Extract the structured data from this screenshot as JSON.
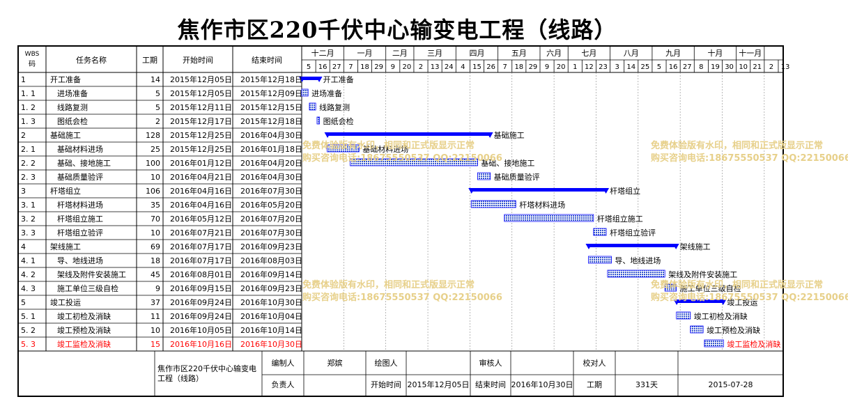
{
  "title": "焦作市区220千伏中心输变电工程（线路）",
  "headers": {
    "wbs": "WBS码",
    "name": "任务名称",
    "dur": "工期",
    "start": "开始时间",
    "end": "结束时间"
  },
  "colors": {
    "bar": "#0000ff",
    "fill": "#3355cc",
    "highlight": "#ff0000",
    "watermark": "#e7d08a"
  },
  "watermark": {
    "line1": "免费体验版有水印，相同和正式版显示正常",
    "line2": "购买咨询电话:18675550537 QQ:22150066"
  },
  "footer": {
    "project": "焦作市区220千伏中心输变电工程（线路）",
    "compiler_label": "编制人",
    "compiler": "郑嫔",
    "drawer_label": "绘图人",
    "reviewer_label": "审核人",
    "checker_label": "校对人",
    "owner_label": "负责人",
    "start_label": "开始时间",
    "start": "2015年12月05日",
    "end_label": "结束时间",
    "end": "2016年10月30日",
    "dur_label": "工期",
    "dur": "331天",
    "date": "2015-07-28"
  },
  "chart_data": {
    "type": "gantt",
    "timeline": {
      "months": [
        {
          "label": "十二月",
          "ticks": [
            "5",
            "16",
            "27"
          ]
        },
        {
          "label": "一月",
          "ticks": [
            "7",
            "18",
            "29"
          ]
        },
        {
          "label": "二月",
          "ticks": [
            "9",
            "20"
          ]
        },
        {
          "label": "三月",
          "ticks": [
            "2",
            "13",
            "24"
          ]
        },
        {
          "label": "四月",
          "ticks": [
            "4",
            "15",
            "26"
          ]
        },
        {
          "label": "五月",
          "ticks": [
            "7",
            "18",
            "29"
          ]
        },
        {
          "label": "六月",
          "ticks": [
            "9",
            "20"
          ]
        },
        {
          "label": "七月",
          "ticks": [
            "1",
            "12",
            "23"
          ]
        },
        {
          "label": "八月",
          "ticks": [
            "3",
            "14",
            "25"
          ]
        },
        {
          "label": "九月",
          "ticks": [
            "5",
            "16",
            "27"
          ]
        },
        {
          "label": "十月",
          "ticks": [
            "8",
            "19",
            "30"
          ]
        },
        {
          "label": "十一月",
          "ticks": [
            "10",
            "21"
          ]
        },
        {
          "label": "",
          "ticks": [
            "2",
            "13"
          ]
        }
      ]
    },
    "tasks": [
      {
        "wbs": "1",
        "name": "开工准备",
        "dur": 14,
        "start": "2015年12月05日",
        "end": "2015年12月18日",
        "summary": true,
        "level": 0
      },
      {
        "wbs": "1.1",
        "name": "进场准备",
        "dur": 5,
        "start": "2015年12月05日",
        "end": "2015年12月09日",
        "summary": false,
        "level": 1
      },
      {
        "wbs": "1.2",
        "name": "线路复测",
        "dur": 5,
        "start": "2015年12月11日",
        "end": "2015年12月15日",
        "summary": false,
        "level": 1
      },
      {
        "wbs": "1.3",
        "name": "图纸会检",
        "dur": 2,
        "start": "2015年12月17日",
        "end": "2015年12月18日",
        "summary": false,
        "level": 1
      },
      {
        "wbs": "2",
        "name": "基础施工",
        "dur": 128,
        "start": "2015年12月25日",
        "end": "2016年04月30日",
        "summary": true,
        "level": 0
      },
      {
        "wbs": "2.1",
        "name": "基础材料进场",
        "dur": 25,
        "start": "2015年12月25日",
        "end": "2016年01月18日",
        "summary": false,
        "level": 1
      },
      {
        "wbs": "2.2",
        "name": "基础、接地施工",
        "dur": 100,
        "start": "2016年01月12日",
        "end": "2016年04月20日",
        "summary": false,
        "level": 1
      },
      {
        "wbs": "2.3",
        "name": "基础质量验评",
        "dur": 10,
        "start": "2016年04月21日",
        "end": "2016年04月30日",
        "summary": false,
        "level": 1
      },
      {
        "wbs": "3",
        "name": "杆塔组立",
        "dur": 106,
        "start": "2016年04月16日",
        "end": "2016年07月30日",
        "summary": true,
        "level": 0
      },
      {
        "wbs": "3.1",
        "name": "杆塔材料进场",
        "dur": 35,
        "start": "2016年04月16日",
        "end": "2016年05月20日",
        "summary": false,
        "level": 1
      },
      {
        "wbs": "3.2",
        "name": "杆塔组立施工",
        "dur": 70,
        "start": "2016年05月12日",
        "end": "2016年07月20日",
        "summary": false,
        "level": 1
      },
      {
        "wbs": "3.3",
        "name": "杆塔组立验评",
        "dur": 10,
        "start": "2016年07月21日",
        "end": "2016年07月30日",
        "summary": false,
        "level": 1
      },
      {
        "wbs": "4",
        "name": "架线施工",
        "dur": 69,
        "start": "2016年07月17日",
        "end": "2016年09月23日",
        "summary": true,
        "level": 0
      },
      {
        "wbs": "4.1",
        "name": "导、地线进场",
        "dur": 18,
        "start": "2016年07月17日",
        "end": "2016年08月03日",
        "summary": false,
        "level": 1
      },
      {
        "wbs": "4.2",
        "name": "架线及附件安装施工",
        "dur": 45,
        "start": "2016年08月01日",
        "end": "2016年09月14日",
        "summary": false,
        "level": 1
      },
      {
        "wbs": "4.3",
        "name": "施工单位三级自检",
        "dur": 9,
        "start": "2016年09月15日",
        "end": "2016年09月23日",
        "summary": false,
        "level": 1
      },
      {
        "wbs": "5",
        "name": "竣工投运",
        "dur": 37,
        "start": "2016年09月24日",
        "end": "2016年10月30日",
        "summary": true,
        "level": 0
      },
      {
        "wbs": "5.1",
        "name": "竣工初检及消缺",
        "dur": 11,
        "start": "2016年09月24日",
        "end": "2016年10月04日",
        "summary": false,
        "level": 1
      },
      {
        "wbs": "5.2",
        "name": "竣工预检及消缺",
        "dur": 10,
        "start": "2016年10月05日",
        "end": "2016年10月14日",
        "summary": false,
        "level": 1
      },
      {
        "wbs": "5.3",
        "name": "竣工监检及消缺",
        "dur": 15,
        "start": "2016年10月16日",
        "end": "2016年10月30日",
        "summary": false,
        "level": 1,
        "highlight": true
      }
    ]
  }
}
